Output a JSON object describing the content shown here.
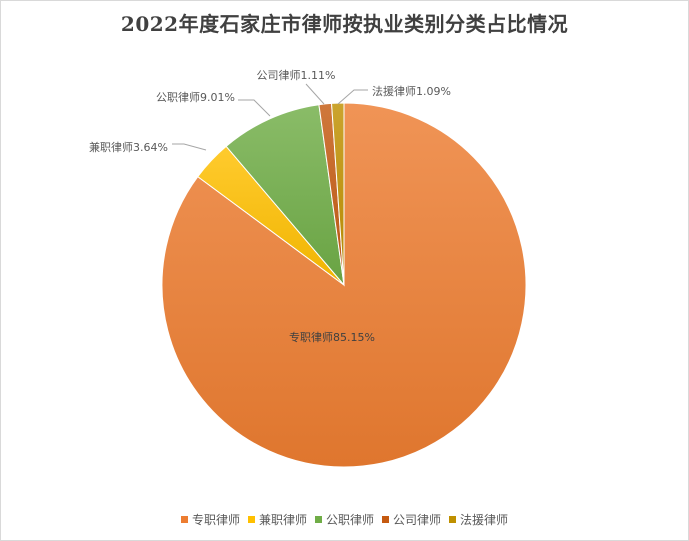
{
  "chart_data": {
    "type": "pie",
    "title": "2022年度石家庄市律师按执业类别分类占比情况",
    "legend_position": "bottom",
    "slices": [
      {
        "name": "专职律师",
        "value": 85.15,
        "label": "专职律师85.15%",
        "color": "#ED7D31"
      },
      {
        "name": "兼职律师",
        "value": 3.64,
        "label": "兼职律师3.64%",
        "color": "#FFC000"
      },
      {
        "name": "公职律师",
        "value": 9.01,
        "label": "公职律师9.01%",
        "color": "#70AD47"
      },
      {
        "name": "公司律师",
        "value": 1.11,
        "label": "公司律师1.11%",
        "color": "#C55A11"
      },
      {
        "name": "法援律师",
        "value": 1.09,
        "label": "法援律师1.09%",
        "color": "#BF9000"
      }
    ]
  }
}
